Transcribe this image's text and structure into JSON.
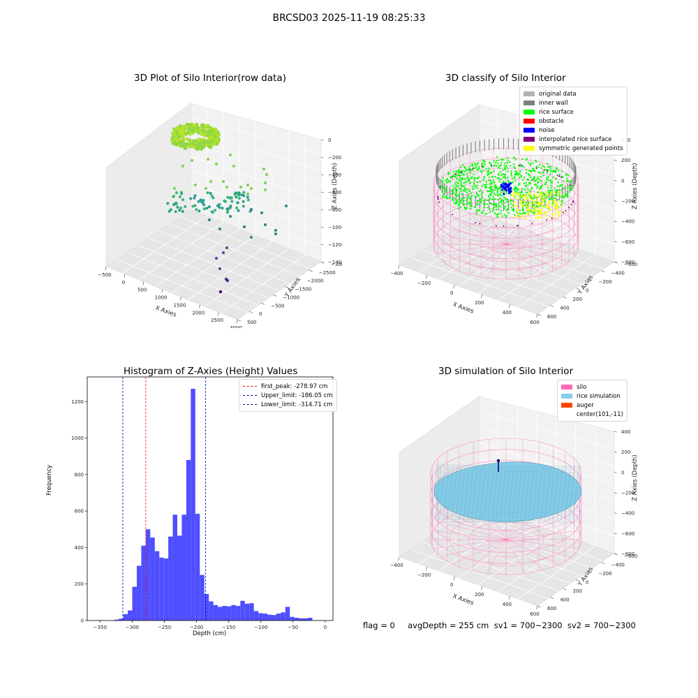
{
  "figure": {
    "suptitle": "BRCSD03 2025-11-19 08:25:33",
    "footer": "flag = 0     avgDepth = 255 cm  sv1 = 700~2300  sv2 = 700~2300"
  },
  "colors": {
    "original_data": "#b2b2b2",
    "inner_wall": "#808080",
    "rice_surface": "#00ff00",
    "obstacle": "#ff0000",
    "noise": "#0000ff",
    "interpolated_rice_surface": "#800080",
    "symmetric_generated_points": "#ffff00",
    "silo": "#ff69b4",
    "rice_simulation": "#87ceeb",
    "auger": "#ff4500",
    "hist_bar": "#4f4fff"
  },
  "chart_data": [
    {
      "type": "scatter",
      "subtype": "3d-scatter",
      "title": "3D Plot of Silo Interior(row data)",
      "xlabel": "X Axies",
      "ylabel": "Y Axies",
      "zlabel": "Z Axies (Depth)",
      "xticks": [
        "−500",
        "0",
        "500",
        "1000",
        "1500",
        "2000",
        "2500",
        "3000"
      ],
      "yticks": [
        "500",
        "0",
        "−500",
        "−1000",
        "−1500",
        "−2000",
        "−2500",
        "−3000"
      ],
      "zticks": [
        "0",
        "−200",
        "−400",
        "−600",
        "−800",
        "−1000",
        "−1200",
        "−1400"
      ],
      "grid": true
    },
    {
      "type": "scatter",
      "subtype": "3d-scatter",
      "title": "3D classify of Silo Interior",
      "xlabel": "X Axies",
      "ylabel": "Y Axies",
      "zlabel": "Z Axies (Depth)",
      "xticks": [
        "−400",
        "−200",
        "0",
        "200",
        "400",
        "600"
      ],
      "yticks": [
        "600",
        "400",
        "200",
        "0",
        "−200",
        "−400",
        "−600"
      ],
      "zticks": [
        "400",
        "200",
        "0",
        "−200",
        "−400",
        "−600",
        "−800"
      ],
      "legend": [
        "original data",
        "inner wall",
        "rice surface",
        "obstacle",
        "noise",
        "interpolated rice surface",
        "symmetric generated points"
      ],
      "legend_position": "top-right",
      "grid": true
    },
    {
      "type": "bar",
      "subtype": "histogram",
      "title": "Histogram of Z-Axies (Height) Values",
      "xlabel": "Depth (cm)",
      "ylabel": "Frequency",
      "xlim": [
        -370,
        12
      ],
      "ylim": [
        0,
        1335
      ],
      "xticks": [
        -350,
        -300,
        -250,
        -200,
        -150,
        -100,
        -50,
        0
      ],
      "yticks": [
        0,
        200,
        400,
        600,
        800,
        1000,
        1200
      ],
      "xtick_labels": [
        "−350",
        "−300",
        "−250",
        "−200",
        "−150",
        "−100",
        "−50",
        "0"
      ],
      "bin_width": 7.0,
      "bin_start": -356.0,
      "values": [
        2,
        0,
        0,
        0,
        5,
        10,
        35,
        55,
        185,
        300,
        410,
        500,
        455,
        380,
        345,
        340,
        460,
        580,
        465,
        580,
        880,
        1270,
        585,
        250,
        145,
        105,
        85,
        75,
        80,
        78,
        85,
        80,
        108,
        92,
        95,
        52,
        40,
        38,
        32,
        30,
        38,
        45,
        75,
        20,
        15,
        12,
        12,
        15,
        0,
        2
      ],
      "vlines": [
        {
          "x": -278.97,
          "label": "first_peak: -278.97 cm",
          "color": "#ff0000"
        },
        {
          "x": -186.05,
          "label": "Upper_limit: -186.05 cm",
          "color": "#0000aa"
        },
        {
          "x": -314.71,
          "label": "Lower_limit: -314.71 cm",
          "color": "#0000aa"
        }
      ],
      "legend_position": "top-right"
    },
    {
      "type": "area",
      "subtype": "3d-surface",
      "title": "3D simulation of Silo Interior",
      "xlabel": "X Axies",
      "ylabel": "Y Axies",
      "zlabel": "Z Axies (Depth)",
      "xticks": [
        "−400",
        "−200",
        "0",
        "200",
        "400",
        "600"
      ],
      "yticks": [
        "600",
        "400",
        "200",
        "0",
        "−200",
        "−400",
        "−600"
      ],
      "zticks": [
        "400",
        "200",
        "0",
        "−200",
        "−400",
        "−600",
        "−800"
      ],
      "legend": [
        "silo",
        "rice simulation",
        "auger",
        "center(101,-11)"
      ],
      "legend_position": "top-right",
      "grid": true
    }
  ]
}
